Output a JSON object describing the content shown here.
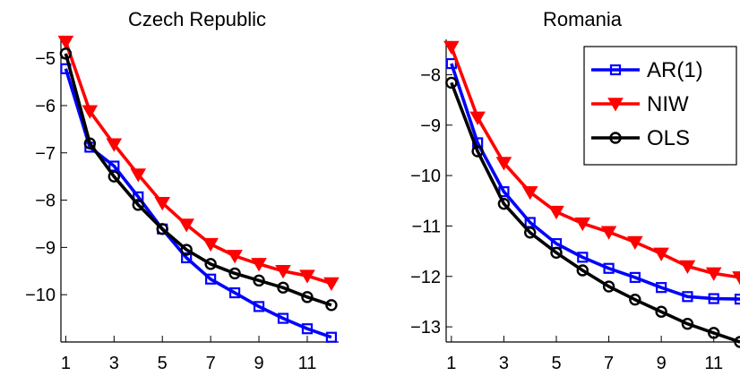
{
  "chart_data": [
    {
      "type": "line",
      "title": "Czech Republic",
      "xlabel": "",
      "ylabel": "",
      "x": [
        1,
        2,
        3,
        4,
        5,
        6,
        7,
        8,
        9,
        10,
        11,
        12
      ],
      "xticks": [
        "1",
        "3",
        "5",
        "7",
        "9",
        "11"
      ],
      "xlim": [
        0.8,
        12.3
      ],
      "ylim": [
        -11.0,
        -4.6
      ],
      "yticks": [
        "−5",
        "−6",
        "−7",
        "−8",
        "−9",
        "−10"
      ],
      "grid": false,
      "series": [
        {
          "name": "AR(1)",
          "color": "#0000ff",
          "marker": "square",
          "values": [
            -5.22,
            -6.88,
            -7.28,
            -7.93,
            -8.61,
            -9.22,
            -9.67,
            -9.96,
            -10.25,
            -10.5,
            -10.72,
            -10.9
          ]
        },
        {
          "name": "NIW",
          "color": "#ff0000",
          "marker": "triangle-down",
          "values": [
            -4.65,
            -6.12,
            -6.82,
            -7.46,
            -8.06,
            -8.52,
            -8.93,
            -9.18,
            -9.35,
            -9.5,
            -9.6,
            -9.76
          ]
        },
        {
          "name": "OLS",
          "color": "#000000",
          "marker": "circle",
          "values": [
            -4.9,
            -6.8,
            -7.5,
            -8.1,
            -8.61,
            -9.05,
            -9.35,
            -9.55,
            -9.7,
            -9.85,
            -10.05,
            -10.22
          ]
        }
      ]
    },
    {
      "type": "line",
      "title": "Romania",
      "xlabel": "",
      "ylabel": "",
      "x": [
        1,
        2,
        3,
        4,
        5,
        6,
        7,
        8,
        9,
        10,
        11,
        12
      ],
      "xticks": [
        "1",
        "3",
        "5",
        "7",
        "9",
        "11"
      ],
      "xlim": [
        0.8,
        12.0
      ],
      "ylim": [
        -13.3,
        -7.3
      ],
      "yticks": [
        "−8",
        "−9",
        "−10",
        "−11",
        "−12",
        "−13"
      ],
      "grid": false,
      "legend": {
        "position": "top-right",
        "entries": [
          "AR(1)",
          "NIW",
          "OLS"
        ]
      },
      "series": [
        {
          "name": "AR(1)",
          "color": "#0000ff",
          "marker": "square",
          "values": [
            -7.78,
            -9.35,
            -10.32,
            -10.93,
            -11.35,
            -11.62,
            -11.84,
            -12.02,
            -12.22,
            -12.4,
            -12.44,
            -12.45
          ]
        },
        {
          "name": "NIW",
          "color": "#ff0000",
          "marker": "triangle-down",
          "values": [
            -7.45,
            -8.85,
            -9.75,
            -10.33,
            -10.72,
            -10.95,
            -11.12,
            -11.32,
            -11.55,
            -11.8,
            -11.94,
            -12.02
          ]
        },
        {
          "name": "OLS",
          "color": "#000000",
          "marker": "circle",
          "values": [
            -8.16,
            -9.52,
            -10.56,
            -11.13,
            -11.53,
            -11.88,
            -12.2,
            -12.46,
            -12.7,
            -12.94,
            -13.12,
            -13.3
          ]
        }
      ]
    }
  ]
}
